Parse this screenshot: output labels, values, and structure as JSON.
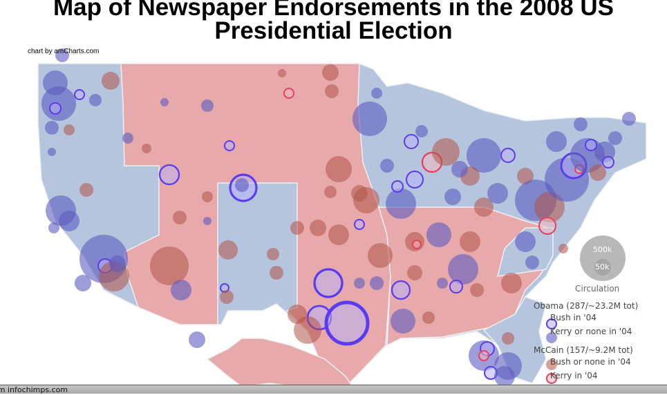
{
  "title": "Map of Newspaper Endorsements in the 2008 US Presidential Election",
  "credit": "chart by amCharts.com",
  "colors": {
    "map_blue": "#b5c5dd",
    "map_red": "#e8a9ab",
    "obama_kerry_fill": "#5c5cc0",
    "obama_bush_fill": "#b8b0f8",
    "obama_bush_stroke": "#5a3cf0",
    "mccain_bush_fill": "#b05448",
    "mccain_kerry_fill": "#f0b8c0",
    "mccain_kerry_stroke": "#e8405c",
    "size_legend": "#a0a0a0"
  },
  "size_legend": {
    "title": "Circulation",
    "large": "500k",
    "small": "50k"
  },
  "legend": {
    "obama": {
      "label": "Obama (287/~23.2M tot)",
      "items": [
        "Bush in '04",
        "Kerry or none in '04"
      ]
    },
    "mccain": {
      "label": "McCain (157/~9.2M tot)",
      "items": [
        "Bush or none in '04",
        "Kerry in '04"
      ]
    }
  },
  "status_bar": "om infochimps.com"
}
